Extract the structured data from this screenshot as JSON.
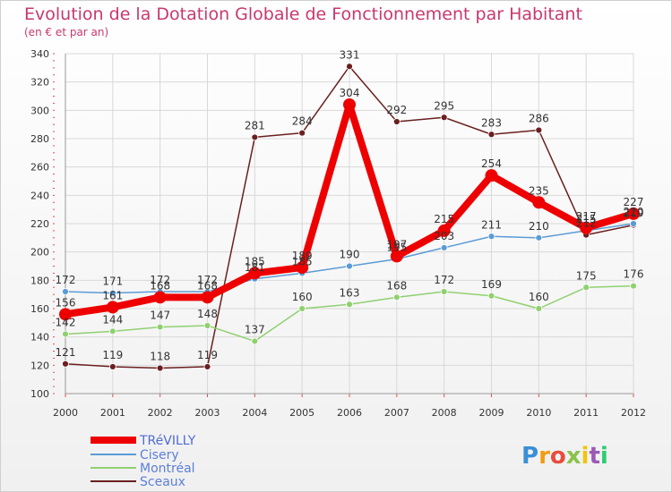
{
  "chart_data": {
    "type": "line",
    "title": "Evolution de la Dotation Globale de Fonctionnement par Habitant",
    "subtitle": "(en € et par an)",
    "xlabel": "",
    "ylabel": "",
    "x": [
      "2000",
      "2001",
      "2002",
      "2003",
      "2004",
      "2005",
      "2006",
      "2007",
      "2008",
      "2009",
      "2010",
      "2011",
      "2012"
    ],
    "ylim": [
      100,
      340
    ],
    "yticks": [
      100,
      120,
      140,
      160,
      180,
      200,
      220,
      240,
      260,
      280,
      300,
      320,
      340
    ],
    "grid": true,
    "legend_position": "bottom-left",
    "series": [
      {
        "name": "TRéVILLY",
        "color": "#ee0000",
        "values": [
          156,
          161,
          168,
          168,
          185,
          189,
          304,
          197,
          215,
          254,
          235,
          217,
          227
        ]
      },
      {
        "name": "Cisery",
        "color": "#5b9bd5",
        "values": [
          172,
          171,
          172,
          172,
          181,
          185,
          190,
          195,
          203,
          211,
          210,
          215,
          220
        ]
      },
      {
        "name": "Montréal",
        "color": "#90d070",
        "values": [
          142,
          144,
          147,
          148,
          137,
          160,
          163,
          168,
          172,
          169,
          160,
          175,
          176
        ]
      },
      {
        "name": "Sceaux",
        "color": "#6b1f1f",
        "values": [
          121,
          119,
          118,
          119,
          281,
          284,
          331,
          292,
          295,
          283,
          286,
          212,
          219
        ]
      }
    ]
  },
  "brand": {
    "logo_text": "Proxiti",
    "logo_colors": [
      "#3b8fd6",
      "#f39c12",
      "#e74c3c",
      "#8bc34a",
      "#f1c40f",
      "#9b59b6",
      "#2ecc71"
    ]
  }
}
